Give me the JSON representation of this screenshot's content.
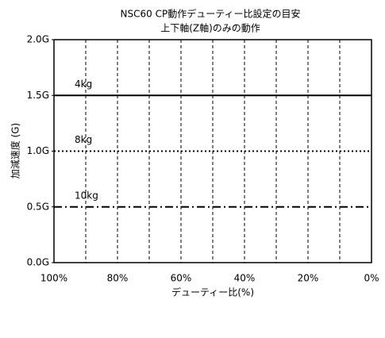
{
  "chart_data": {
    "type": "line",
    "title": "NSC60 CP動作デューティー比設定の目安",
    "subtitle": "上下軸(Z軸)のみの動作",
    "x_label": "デューティー比(%)",
    "y_label": "加減速度 (G)",
    "x": [
      100,
      0
    ],
    "series": [
      {
        "name": "4kg",
        "color": "#000000",
        "dash": "solid",
        "values": [
          1.5,
          1.5
        ]
      },
      {
        "name": "8kg",
        "color": "#000000",
        "dash": "dotted",
        "values": [
          1.0,
          1.0
        ]
      },
      {
        "name": "10kg",
        "color": "#000000",
        "dash": "dashdot",
        "values": [
          0.5,
          0.5
        ]
      }
    ],
    "xlim": [
      100,
      0
    ],
    "xticks": [
      {
        "value": 100,
        "label": "100%"
      },
      {
        "value": 80,
        "label": "80%"
      },
      {
        "value": 60,
        "label": "60%"
      },
      {
        "value": 40,
        "label": "40%"
      },
      {
        "value": 20,
        "label": "20%"
      },
      {
        "value": 0,
        "label": "0%"
      }
    ],
    "xminor_ticks": [
      90,
      70,
      50,
      30,
      10
    ],
    "ylim": [
      0,
      2
    ],
    "yticks": [
      {
        "value": 0,
        "label": "0.0G"
      },
      {
        "value": 0.5,
        "label": "0.5G"
      },
      {
        "value": 1,
        "label": "1.0G"
      },
      {
        "value": 1.5,
        "label": "1.5G"
      },
      {
        "value": 2,
        "label": "2.0G"
      }
    ],
    "grid": true
  }
}
